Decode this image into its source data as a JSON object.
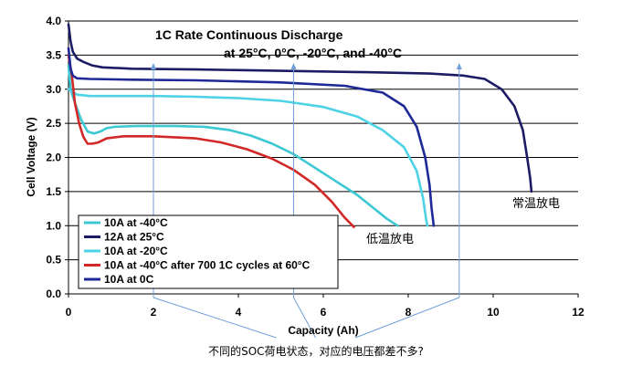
{
  "chart_data": {
    "type": "line",
    "title_line1": "1C Rate Continuous Discharge",
    "title_line2": "at 25°C, 0°C, -20°C, and -40°C",
    "xlabel": "Capacity (Ah)",
    "ylabel": "Cell Voltage (V)",
    "xlim": [
      0,
      12
    ],
    "ylim": [
      0,
      4.0
    ],
    "x_ticks": [
      "0",
      "2",
      "4",
      "6",
      "8",
      "10",
      "12"
    ],
    "y_ticks": [
      "0.0",
      "0.5",
      "1.0",
      "1.5",
      "2.0",
      "2.5",
      "3.0",
      "3.5",
      "4.0"
    ],
    "grid": "horizontal",
    "legend_position": "bottom-left",
    "series": [
      {
        "name": "10A at -40°C",
        "color": "#3cc8d2",
        "points": [
          [
            0,
            3.35
          ],
          [
            0.05,
            3.0
          ],
          [
            0.15,
            2.8
          ],
          [
            0.3,
            2.55
          ],
          [
            0.45,
            2.38
          ],
          [
            0.6,
            2.35
          ],
          [
            0.75,
            2.38
          ],
          [
            0.9,
            2.43
          ],
          [
            1.1,
            2.45
          ],
          [
            1.6,
            2.46
          ],
          [
            2.5,
            2.46
          ],
          [
            3.2,
            2.45
          ],
          [
            3.8,
            2.4
          ],
          [
            4.3,
            2.32
          ],
          [
            4.8,
            2.2
          ],
          [
            5.3,
            2.05
          ],
          [
            5.8,
            1.85
          ],
          [
            6.3,
            1.65
          ],
          [
            6.8,
            1.45
          ],
          [
            7.2,
            1.25
          ],
          [
            7.5,
            1.1
          ],
          [
            7.75,
            1.0
          ]
        ]
      },
      {
        "name": "12A at 25°C",
        "color": "#1c1c64",
        "points": [
          [
            0,
            3.95
          ],
          [
            0.05,
            3.7
          ],
          [
            0.1,
            3.55
          ],
          [
            0.2,
            3.45
          ],
          [
            0.35,
            3.4
          ],
          [
            0.55,
            3.35
          ],
          [
            0.8,
            3.32
          ],
          [
            1.5,
            3.3
          ],
          [
            3,
            3.29
          ],
          [
            5,
            3.27
          ],
          [
            7,
            3.25
          ],
          [
            8.5,
            3.23
          ],
          [
            9.3,
            3.2
          ],
          [
            9.8,
            3.15
          ],
          [
            10.2,
            3.0
          ],
          [
            10.5,
            2.75
          ],
          [
            10.7,
            2.4
          ],
          [
            10.8,
            2.0
          ],
          [
            10.87,
            1.7
          ],
          [
            10.9,
            1.5
          ]
        ]
      },
      {
        "name": "10A at -20°C",
        "color": "#4dd2e6",
        "points": [
          [
            0,
            3.0
          ],
          [
            0.2,
            2.92
          ],
          [
            0.5,
            2.9
          ],
          [
            1,
            2.9
          ],
          [
            2,
            2.9
          ],
          [
            3,
            2.89
          ],
          [
            4,
            2.87
          ],
          [
            5,
            2.83
          ],
          [
            6,
            2.74
          ],
          [
            6.8,
            2.6
          ],
          [
            7.4,
            2.4
          ],
          [
            7.9,
            2.15
          ],
          [
            8.2,
            1.8
          ],
          [
            8.35,
            1.4
          ],
          [
            8.42,
            1.1
          ],
          [
            8.45,
            1.0
          ]
        ]
      },
      {
        "name": "10A at -40°C after 700 1C cycles at 60°C",
        "color": "#d22828",
        "points": [
          [
            0,
            3.5
          ],
          [
            0.08,
            3.2
          ],
          [
            0.15,
            2.8
          ],
          [
            0.25,
            2.5
          ],
          [
            0.35,
            2.3
          ],
          [
            0.45,
            2.2
          ],
          [
            0.55,
            2.2
          ],
          [
            0.7,
            2.22
          ],
          [
            0.9,
            2.28
          ],
          [
            1.3,
            2.31
          ],
          [
            2,
            2.31
          ],
          [
            3,
            2.28
          ],
          [
            3.6,
            2.22
          ],
          [
            4.2,
            2.12
          ],
          [
            4.8,
            1.98
          ],
          [
            5.3,
            1.82
          ],
          [
            5.8,
            1.6
          ],
          [
            6.2,
            1.35
          ],
          [
            6.5,
            1.12
          ],
          [
            6.72,
            0.98
          ]
        ]
      },
      {
        "name": "10A at 0C",
        "color": "#1e2896",
        "points": [
          [
            0,
            3.6
          ],
          [
            0.05,
            3.3
          ],
          [
            0.1,
            3.2
          ],
          [
            0.2,
            3.16
          ],
          [
            0.5,
            3.15
          ],
          [
            1.5,
            3.14
          ],
          [
            3,
            3.13
          ],
          [
            5,
            3.1
          ],
          [
            6.5,
            3.05
          ],
          [
            7.4,
            2.95
          ],
          [
            7.9,
            2.75
          ],
          [
            8.2,
            2.45
          ],
          [
            8.4,
            2.0
          ],
          [
            8.5,
            1.6
          ],
          [
            8.55,
            1.25
          ],
          [
            8.6,
            1.0
          ]
        ]
      }
    ],
    "annotations": {
      "right_label": "常温放电",
      "middle_label": "低温放电",
      "bottom_caption": "不同的SOC荷电状态，对应的电压都差不多?",
      "arrow_targets_x": [
        2,
        5.3,
        9.2
      ]
    }
  }
}
